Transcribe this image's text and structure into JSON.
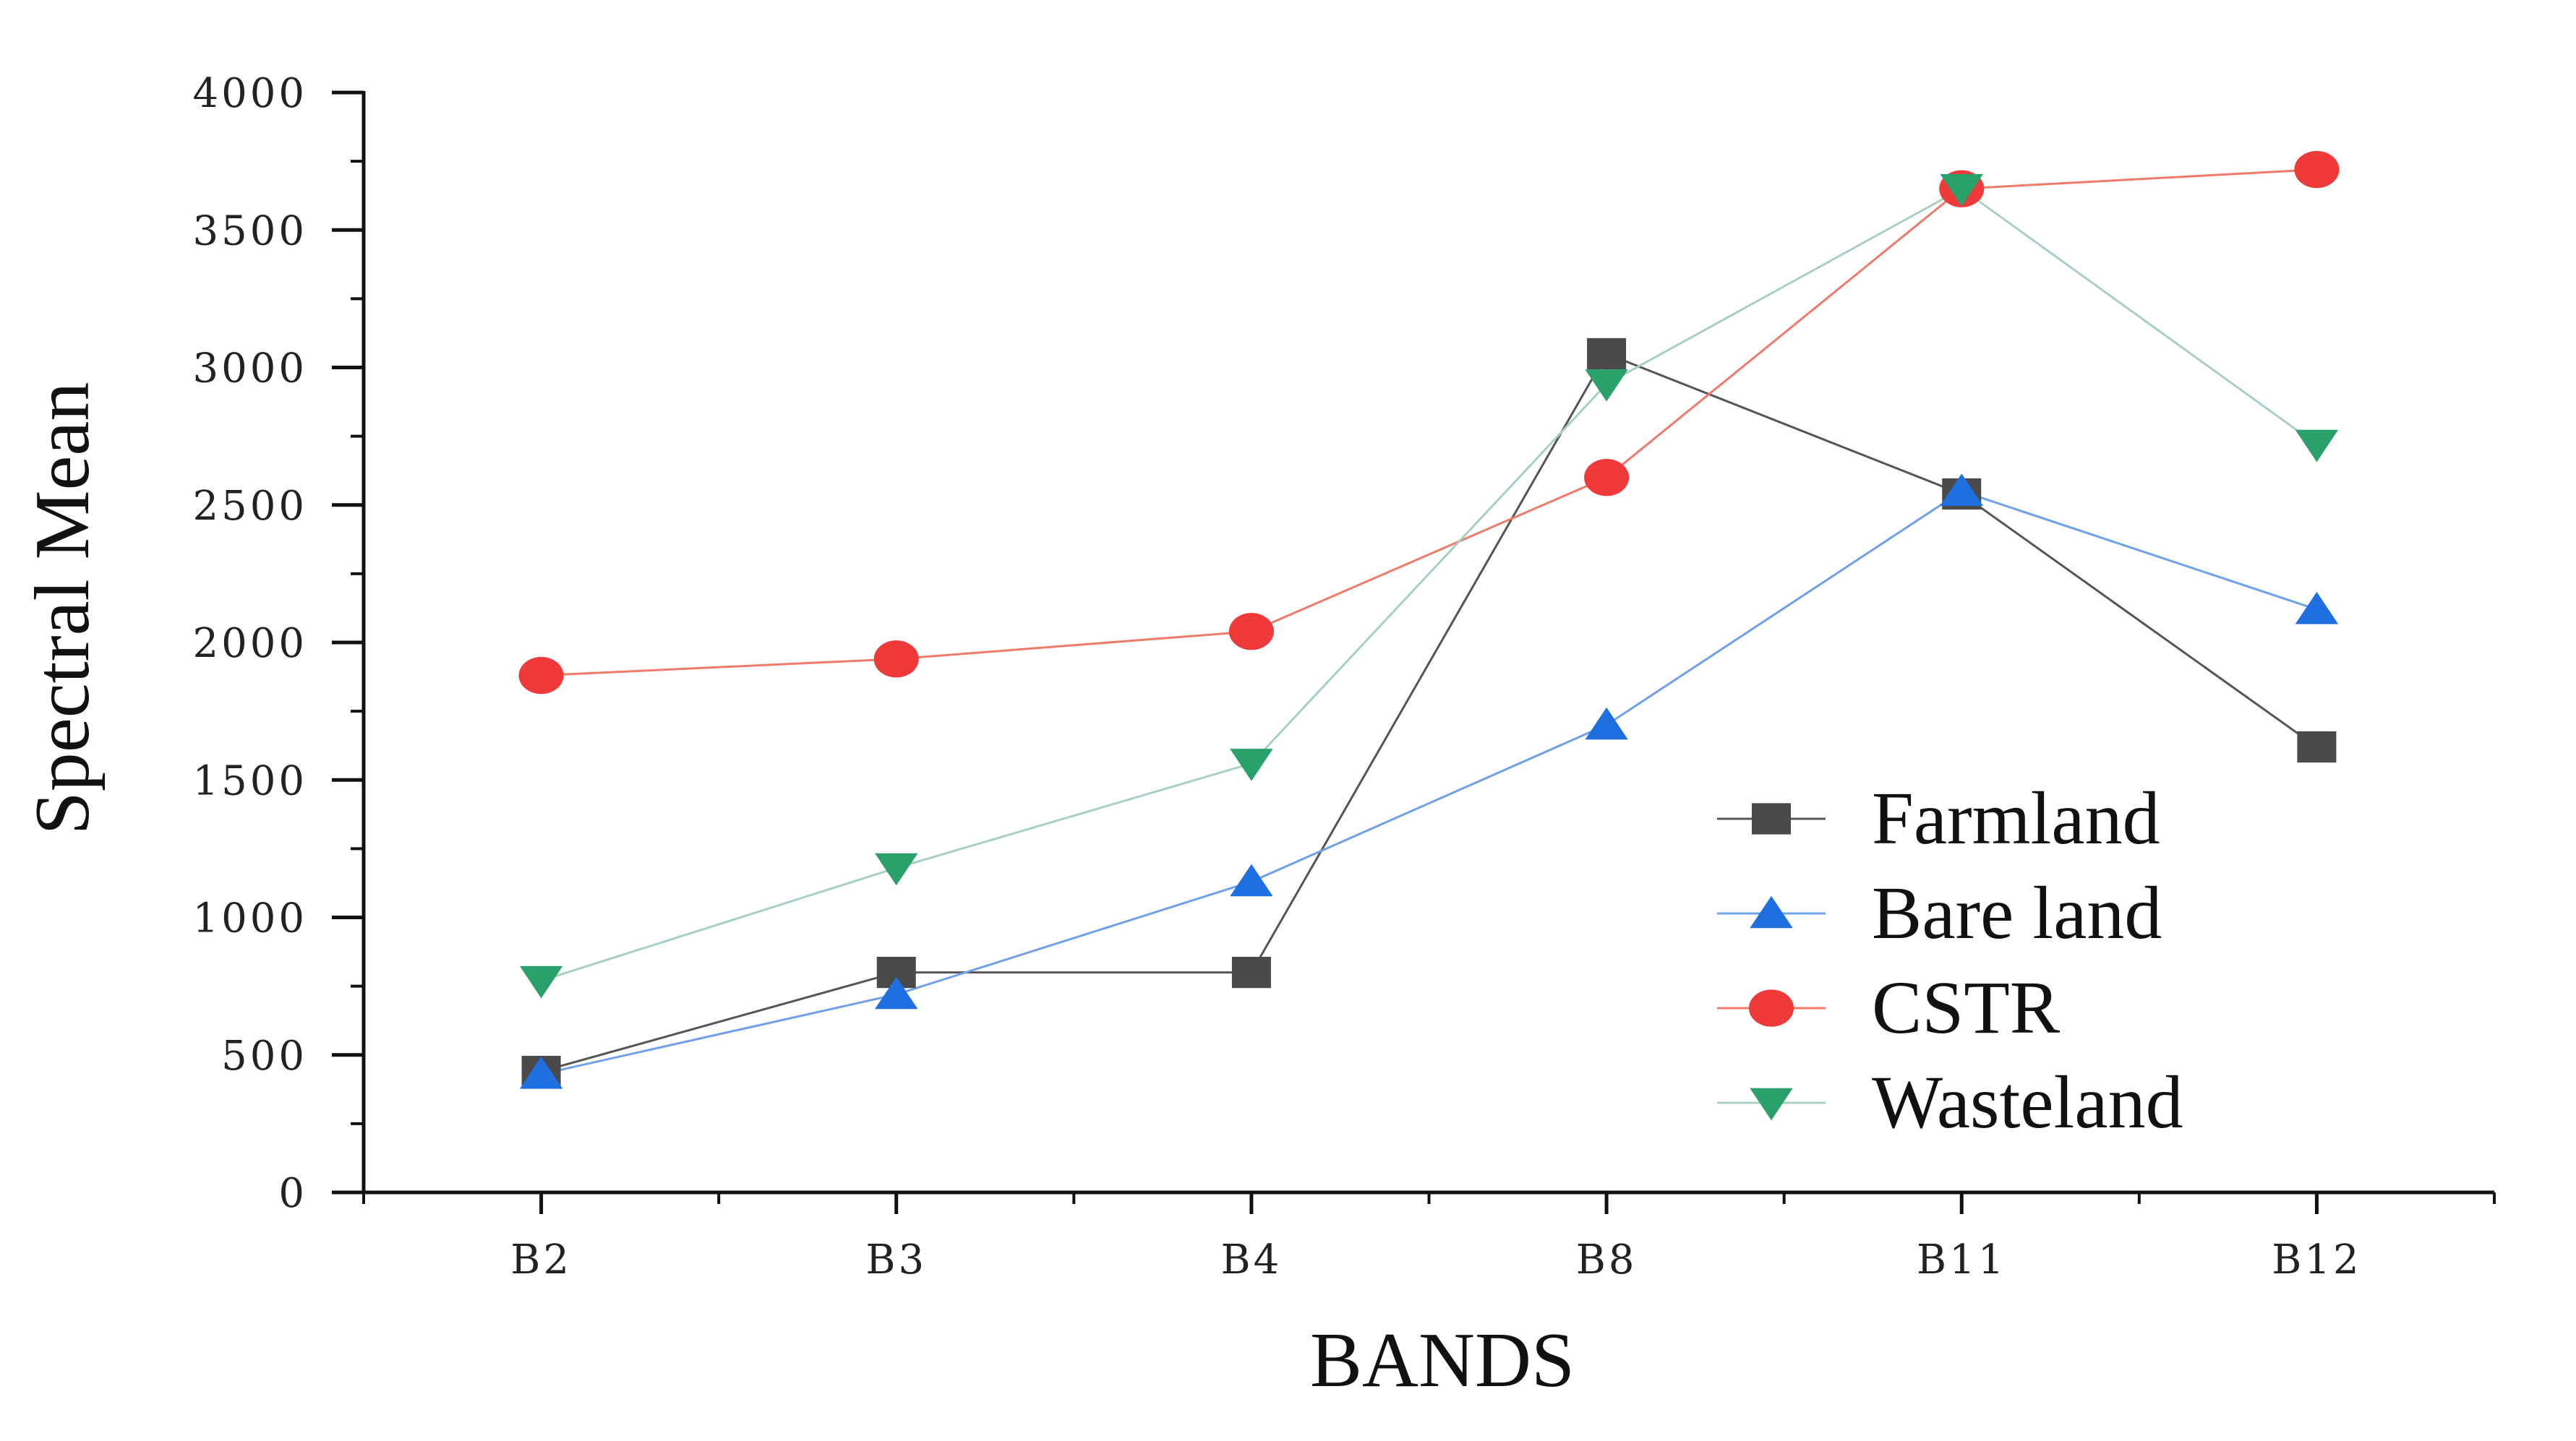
{
  "chart_data": {
    "type": "line",
    "title": "",
    "xlabel": "BANDS",
    "ylabel": "Spectral Mean",
    "categories": [
      "B2",
      "B3",
      "B4",
      "B8",
      "B11",
      "B12"
    ],
    "ylim": [
      0,
      4000
    ],
    "yticks": [
      0,
      500,
      1000,
      1500,
      2000,
      2500,
      3000,
      3500,
      4000
    ],
    "grid": false,
    "legend_position": "right-middle",
    "series": [
      {
        "name": "Farmland",
        "marker": "square",
        "color": "#4a4a4a",
        "line_color": "#555555",
        "values": [
          440,
          800,
          800,
          3050,
          2540,
          1620
        ]
      },
      {
        "name": "Bare land",
        "marker": "triangle-up",
        "color": "#1f6fe0",
        "line_color": "#6fa0e8",
        "values": [
          430,
          720,
          1130,
          1700,
          2550,
          2120
        ]
      },
      {
        "name": "CSTR",
        "marker": "circle",
        "color": "#f03a3a",
        "line_color": "#f07a6a",
        "values": [
          1880,
          1940,
          2040,
          2600,
          3650,
          3720
        ]
      },
      {
        "name": "Wasteland",
        "marker": "triangle-down",
        "color": "#2aa06a",
        "line_color": "#a8d0c0",
        "values": [
          770,
          1180,
          1560,
          2940,
          3650,
          2720
        ]
      }
    ]
  }
}
